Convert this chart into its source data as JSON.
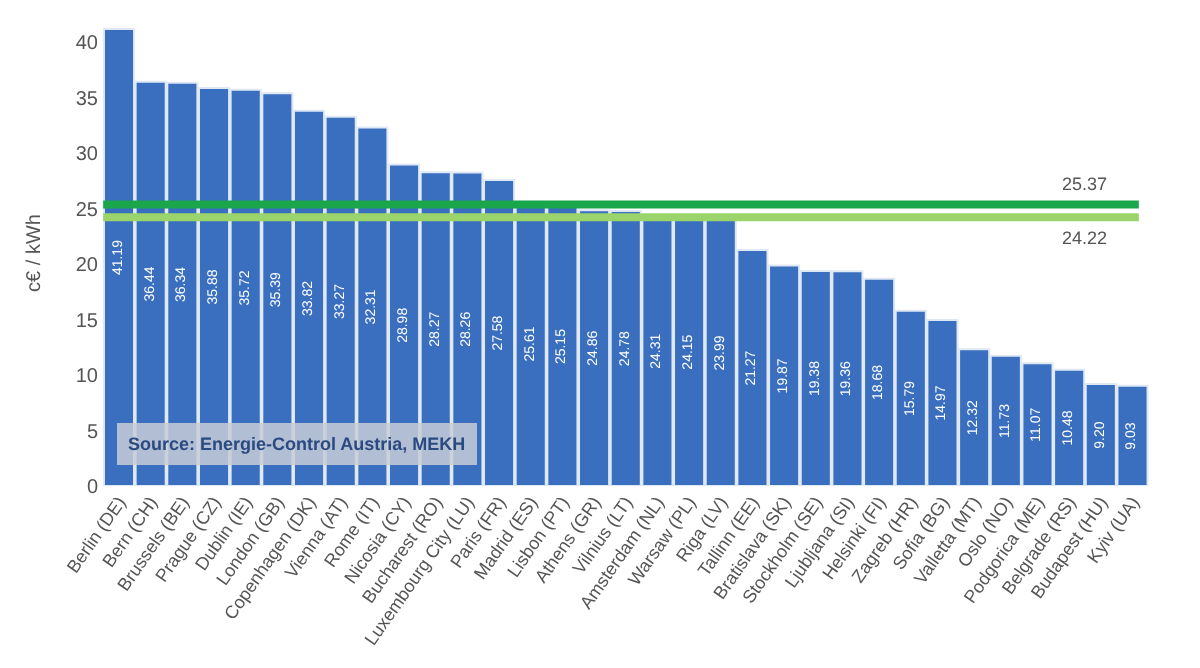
{
  "chart_data": {
    "type": "bar",
    "ylabel": "c€ / kWh",
    "categories": [
      "Berlin (DE)",
      "Bern (CH)",
      "Brussels (BE)",
      "Prague (CZ)",
      "Dublin (IE)",
      "London (GB)",
      "Copenhagen (DK)",
      "Vienna (AT)",
      "Rome (IT)",
      "Nicosia (CY)",
      "Bucharest (RO)",
      "Luxembourg City (LU)",
      "Paris (FR)",
      "Madrid (ES)",
      "Lisbon (PT)",
      "Athens (GR)",
      "Vilnius (LT)",
      "Amsterdam (NL)",
      "Warsaw (PL)",
      "Riga (LV)",
      "Tallinn (EE)",
      "Bratislava (SK)",
      "Stockholm (SE)",
      "Ljubljana (SI)",
      "Helsinki (FI)",
      "Zagreb (HR)",
      "Sofia (BG)",
      "Valletta (MT)",
      "Oslo (NO)",
      "Podgorica (ME)",
      "Belgrade (RS)",
      "Budapest (HU)",
      "Kyiv (UA)"
    ],
    "values": [
      41.19,
      36.44,
      36.34,
      35.88,
      35.72,
      35.39,
      33.82,
      33.27,
      32.31,
      28.98,
      28.27,
      28.26,
      27.58,
      25.61,
      25.15,
      24.86,
      24.78,
      24.31,
      24.15,
      23.99,
      21.27,
      19.87,
      19.38,
      19.36,
      18.68,
      15.79,
      14.97,
      12.32,
      11.73,
      11.07,
      10.48,
      9.2,
      9.03
    ],
    "value_labels": [
      "41.19",
      "36.44",
      "36.34",
      "35.88",
      "35.72",
      "35.39",
      "33.82",
      "33.27",
      "32.31",
      "28.98",
      "28.27",
      "28.26",
      "27.58",
      "25.61",
      "25.15",
      "24.86",
      "24.78",
      "24.31",
      "24.15",
      "23.99",
      "21.27",
      "19.87",
      "19.38",
      "19.36",
      "18.68",
      "15.79",
      "14.97",
      "12.32",
      "11.73",
      "11.07",
      "10.48",
      "9.20",
      "9.03"
    ],
    "color": "#3a6fc0",
    "ylim": [
      0,
      42
    ],
    "yticks": [
      0,
      5,
      10,
      15,
      20,
      25,
      30,
      35,
      40
    ],
    "ref_lines": [
      {
        "axis": "y",
        "value": 25.37,
        "label": "25.37",
        "color": "#1aa64a",
        "line_style": "solid"
      },
      {
        "axis": "y",
        "value": 24.22,
        "label": "24.22",
        "color": "#9bd46a",
        "line_style": "solid"
      }
    ],
    "annotations": [
      "Source: Energie-Control Austria, MEKH"
    ]
  }
}
